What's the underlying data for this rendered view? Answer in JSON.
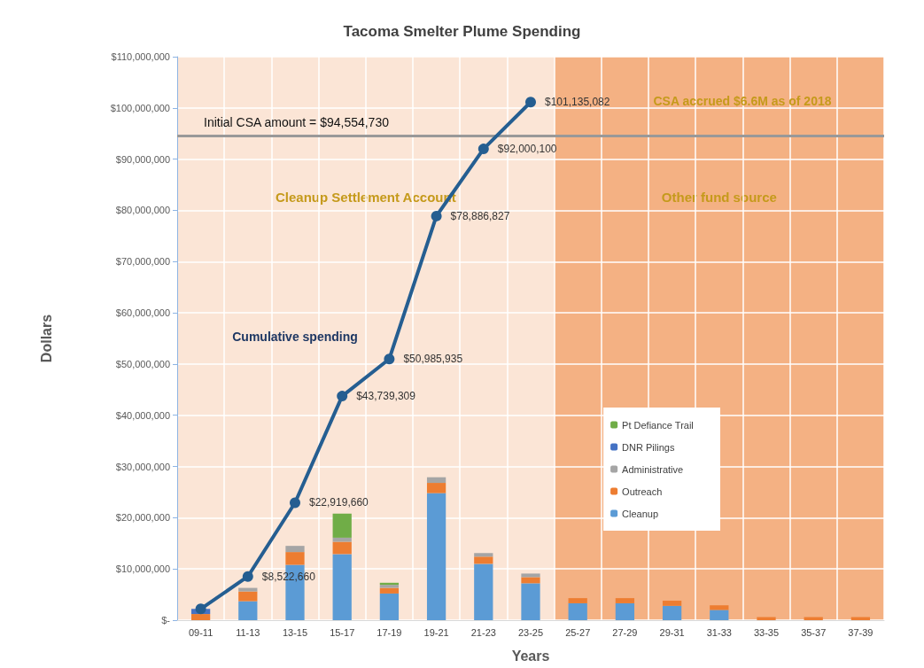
{
  "chart_data": {
    "type": "bar",
    "title": "Tacoma Smelter Plume Spending",
    "xlabel": "Years",
    "ylabel": "Dollars",
    "categories": [
      "09-11",
      "11-13",
      "13-15",
      "15-17",
      "17-19",
      "19-21",
      "21-23",
      "23-25",
      "25-27",
      "27-29",
      "29-31",
      "31-33",
      "33-35",
      "35-37",
      "37-39"
    ],
    "stacked": true,
    "series": [
      {
        "name": "Cleanup",
        "color": "#5b9bd5",
        "values": [
          0,
          3700000,
          10800000,
          12900000,
          5200000,
          24800000,
          11000000,
          7200000,
          3300000,
          3300000,
          2800000,
          2000000,
          0,
          0,
          0
        ]
      },
      {
        "name": "Outreach",
        "color": "#ed7d31",
        "values": [
          1200000,
          1900000,
          2500000,
          2400000,
          1100000,
          2000000,
          1400000,
          1200000,
          1000000,
          1000000,
          1000000,
          900000,
          600000,
          600000,
          600000
        ]
      },
      {
        "name": "Administrative",
        "color": "#a5a5a5",
        "values": [
          0,
          700000,
          1200000,
          800000,
          600000,
          1100000,
          700000,
          700000,
          0,
          0,
          0,
          0,
          0,
          0,
          0
        ]
      },
      {
        "name": "DNR Pilings",
        "color": "#4472c4",
        "values": [
          1000000,
          0,
          0,
          0,
          0,
          0,
          0,
          0,
          0,
          0,
          0,
          0,
          0,
          0,
          0
        ]
      },
      {
        "name": "Pt Defiance Trail",
        "color": "#70ad47",
        "values": [
          0,
          0,
          0,
          4700000,
          400000,
          0,
          0,
          0,
          0,
          0,
          0,
          0,
          0,
          0,
          0
        ]
      },
      {
        "name": "Cumulative spending",
        "type": "line",
        "color": "#255e91",
        "marker": "circle",
        "values": [
          2200000,
          8522660,
          22919660,
          43739309,
          50985935,
          78886827,
          92000100,
          101135082,
          null,
          null,
          null,
          null,
          null,
          null,
          null
        ],
        "value_labels": [
          null,
          "$8,522,660",
          "$22,919,660",
          "$43,739,309",
          "$50,985,935",
          "$78,886,827",
          "$92,000,100",
          "$101,135,082",
          null,
          null,
          null,
          null,
          null,
          null,
          null
        ]
      }
    ],
    "ylim": [
      0,
      110000000
    ],
    "yticks": [
      {
        "value": 0,
        "label": "$-"
      },
      {
        "value": 10000000,
        "label": "$10,000,000"
      },
      {
        "value": 20000000,
        "label": "$20,000,000"
      },
      {
        "value": 30000000,
        "label": "$30,000,000"
      },
      {
        "value": 40000000,
        "label": "$40,000,000"
      },
      {
        "value": 50000000,
        "label": "$50,000,000"
      },
      {
        "value": 60000000,
        "label": "$60,000,000"
      },
      {
        "value": 70000000,
        "label": "$70,000,000"
      },
      {
        "value": 80000000,
        "label": "$80,000,000"
      },
      {
        "value": 90000000,
        "label": "$90,000,000"
      },
      {
        "value": 100000000,
        "label": "$100,000,000"
      },
      {
        "value": 110000000,
        "label": "$110,000,000"
      }
    ],
    "ref_lines": [
      {
        "axis": "y",
        "value": 94554730,
        "label": "Initial CSA amount = $94,554,730",
        "color": "#999999"
      }
    ],
    "bands": [
      {
        "axis": "x",
        "from": "09-11",
        "to": "23-25",
        "label": "Cleanup Settlement Account",
        "color": "#fbe5d6"
      },
      {
        "axis": "x",
        "from": "25-27",
        "to": "37-39",
        "label": "Other fund source",
        "color": "#f4b183"
      }
    ],
    "annotations": [
      "CSA accrued $6.6M as of 2018"
    ],
    "grid": true,
    "legend": "right"
  }
}
